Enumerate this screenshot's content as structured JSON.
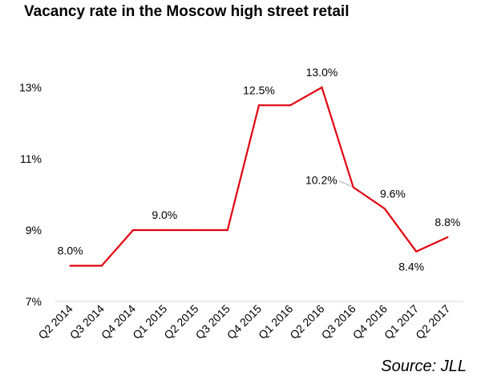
{
  "title": "Vacancy rate in the Moscow high street retail",
  "source": "Source: JLL",
  "colors": {
    "line": "#e3000f",
    "axis": "#d9d9d9",
    "leader": "#a6a6a6"
  },
  "chart_data": {
    "type": "line",
    "categories": [
      "Q2 2014",
      "Q3 2014",
      "Q4 2014",
      "Q1 2015",
      "Q2 2015",
      "Q3 2015",
      "Q4 2015",
      "Q1 2016",
      "Q2 2016",
      "Q3 2016",
      "Q4 2016",
      "Q1 2017",
      "Q2 2017"
    ],
    "series": [
      {
        "values": [
          8.0,
          8.0,
          9.0,
          9.0,
          9.0,
          9.0,
          12.5,
          12.5,
          13.0,
          10.2,
          9.6,
          8.4,
          8.8
        ]
      }
    ],
    "ylim": [
      7,
      13
    ],
    "yticks": [
      7,
      9,
      11,
      13
    ],
    "ytick_labels": [
      "7%",
      "9%",
      "11%",
      "13%"
    ],
    "grid": false,
    "legend": "none",
    "data_labels": [
      {
        "index": 0,
        "text": "8.0%",
        "pos": "above"
      },
      {
        "index": 3,
        "text": "9.0%",
        "pos": "above"
      },
      {
        "index": 6,
        "text": "12.5%",
        "pos": "above"
      },
      {
        "index": 8,
        "text": "13.0%",
        "pos": "above"
      },
      {
        "index": 9,
        "text": "10.2%",
        "pos": "left-leader"
      },
      {
        "index": 10,
        "text": "9.6%",
        "pos": "above-right"
      },
      {
        "index": 11,
        "text": "8.4%",
        "pos": "below"
      },
      {
        "index": 12,
        "text": "8.8%",
        "pos": "above"
      }
    ]
  }
}
